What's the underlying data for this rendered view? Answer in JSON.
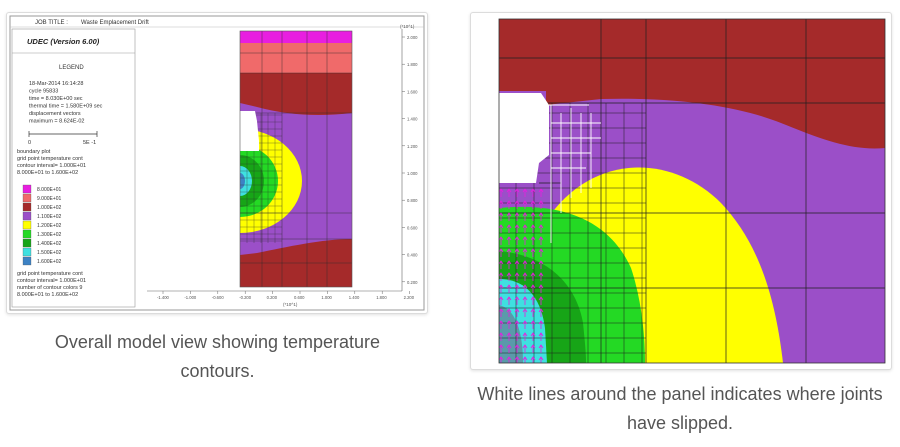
{
  "left_figure": {
    "job_title_prefix": "JOB TITLE :",
    "job_title": "Waste Emplacement Drift",
    "software": "UDEC (Version 6.00)",
    "legend_heading": "LEGEND",
    "info_lines": [
      "18-Mar-2014  16:14:28",
      "cycle   95833",
      "time  =  8.030E+00 sec",
      "thermal time = 1.580E+09 sec",
      "displacement vectors",
      "maximum =     8.624E-02"
    ],
    "scale_labels": [
      "0",
      "5E -1"
    ],
    "plot_lines_1": [
      "boundary plot",
      "grid point temperature cont",
      "contour interval= 1.000E+01",
      "8.000E+01 to 1.600E+02"
    ],
    "legend_items": [
      {
        "label": "8.000E+01",
        "color": "#e81ee0"
      },
      {
        "label": "9.000E+01",
        "color": "#f06a6a"
      },
      {
        "label": "1.000E+02",
        "color": "#a52a2a"
      },
      {
        "label": "1.100E+02",
        "color": "#9b4fc8"
      },
      {
        "label": "1.200E+02",
        "color": "#ffff00"
      },
      {
        "label": "1.300E+02",
        "color": "#24d924"
      },
      {
        "label": "1.400E+02",
        "color": "#17a517"
      },
      {
        "label": "1.500E+02",
        "color": "#3fe0e0"
      },
      {
        "label": "1.600E+02",
        "color": "#3d82c4"
      }
    ],
    "plot_lines_2": [
      "grid point temperature cont",
      "contour interval= 1.000E+01",
      "number of contour colors  9",
      "8.000E+01 to 1.600E+02"
    ],
    "axis_title": "(*10^1)",
    "x_axis_title": "(*10^1)",
    "y_ticks": [
      "2.000",
      "1.800",
      "1.600",
      "1.400",
      "1.200",
      "1.000",
      "0.800",
      "0.600",
      "0.400",
      "0.200"
    ],
    "x_ticks": [
      "-1.400",
      "-1.000",
      "-0.600",
      "-0.200",
      "0.200",
      "0.600",
      "1.000",
      "1.400",
      "1.800",
      "2.200"
    ]
  },
  "captions": {
    "left": "Overall model view showing temperature contours.",
    "right": "White lines around the panel indicates where joints have slipped."
  }
}
